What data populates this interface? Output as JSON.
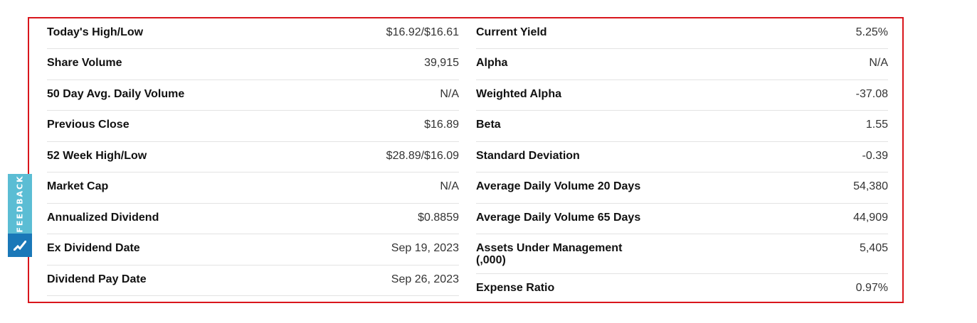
{
  "feedback": {
    "label": "FEEDBACK",
    "icon": "nasdaq-logo-icon",
    "colors": {
      "top": "#5bbdd4",
      "bottom": "#1a78b8"
    }
  },
  "frame_color": "#d9161c",
  "left": [
    {
      "label": "Today's High/Low",
      "value": "$16.92/$16.61"
    },
    {
      "label": "Share Volume",
      "value": "39,915"
    },
    {
      "label": "50 Day Avg. Daily Volume",
      "value": "N/A"
    },
    {
      "label": "Previous Close",
      "value": "$16.89"
    },
    {
      "label": "52 Week High/Low",
      "value": "$28.89/$16.09"
    },
    {
      "label": "Market Cap",
      "value": "N/A"
    },
    {
      "label": "Annualized Dividend",
      "value": "$0.8859"
    },
    {
      "label": "Ex Dividend Date",
      "value": "Sep 19, 2023"
    },
    {
      "label": "Dividend Pay Date",
      "value": "Sep 26, 2023"
    }
  ],
  "right": [
    {
      "label": "Current Yield",
      "value": "5.25%"
    },
    {
      "label": "Alpha",
      "value": "N/A"
    },
    {
      "label": "Weighted Alpha",
      "value": "-37.08"
    },
    {
      "label": "Beta",
      "value": "1.55"
    },
    {
      "label": "Standard Deviation",
      "value": "-0.39"
    },
    {
      "label": "Average Daily Volume 20 Days",
      "value": "54,380"
    },
    {
      "label": "Average Daily Volume 65 Days",
      "value": "44,909"
    },
    {
      "label": "Assets Under Management (,000)",
      "value": "5,405"
    },
    {
      "label": "Expense Ratio",
      "value": "0.97%"
    }
  ]
}
